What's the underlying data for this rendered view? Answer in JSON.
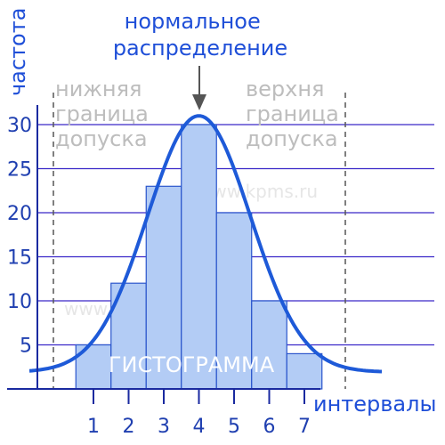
{
  "chart_data": {
    "type": "bar",
    "title": "нормальное распределение",
    "title_lines": [
      "нормальное",
      "распределение"
    ],
    "ylabel": "частота",
    "xlabel": "интервалы",
    "categories": [
      "1",
      "2",
      "3",
      "4",
      "5",
      "6",
      "7"
    ],
    "values": [
      5,
      12,
      23,
      30,
      20,
      10,
      4
    ],
    "yticks": [
      "5",
      "10",
      "15",
      "20",
      "25",
      "30"
    ],
    "ylim": [
      0,
      33
    ],
    "grid": true,
    "bar_label": "ГИСТОГРАММА",
    "lower_limit_lines": [
      "нижняя",
      "граница",
      "допуска"
    ],
    "upper_limit_lines": [
      "верхня",
      "граница",
      "допуска"
    ],
    "curve": {
      "peak_value": 31,
      "peak_at": 4
    },
    "watermark": "www.kpms.ru",
    "colors": {
      "bar_fill": "#b3ccf5",
      "bar_stroke": "#2a55cc",
      "grid": "#3a28c8",
      "axis": "#1a2aa0",
      "curve": "#1e5ad8",
      "title": "#1f4fd8",
      "limit_text": "#bdbdbd",
      "limit_line": "#555555"
    }
  }
}
